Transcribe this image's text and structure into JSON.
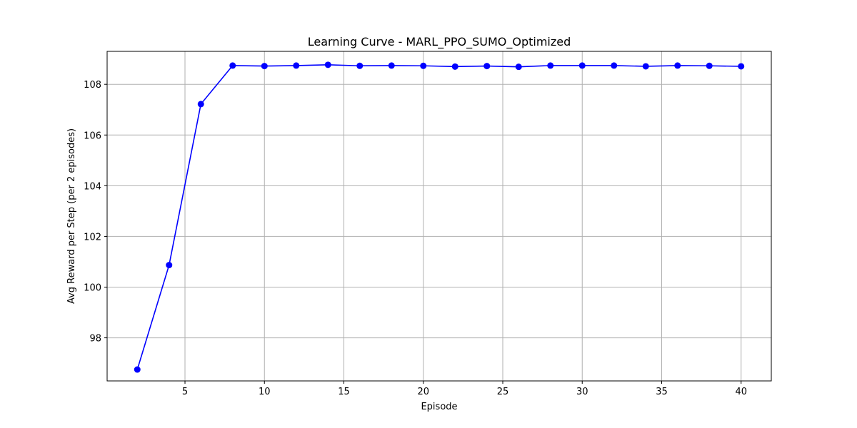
{
  "chart_data": {
    "type": "line",
    "title": "Learning Curve - MARL_PPO_SUMO_Optimized",
    "xlabel": "Episode",
    "ylabel": "Avg Reward per Step (per 2 episodes)",
    "xlim": [
      0.1,
      41.9
    ],
    "ylim": [
      96.3,
      109.3
    ],
    "xticks": [
      5,
      10,
      15,
      20,
      25,
      30,
      35,
      40
    ],
    "yticks": [
      98,
      100,
      102,
      104,
      106,
      108
    ],
    "grid": true,
    "line_color": "#0000ff",
    "marker": "circle",
    "series": [
      {
        "x": [
          2,
          4,
          6,
          8,
          10,
          12,
          14,
          16,
          18,
          20,
          22,
          24,
          26,
          28,
          30,
          32,
          34,
          36,
          38,
          40
        ],
        "values": [
          96.75,
          100.87,
          107.22,
          108.74,
          108.72,
          108.74,
          108.77,
          108.73,
          108.74,
          108.73,
          108.7,
          108.72,
          108.69,
          108.74,
          108.74,
          108.74,
          108.71,
          108.74,
          108.73,
          108.71
        ]
      }
    ]
  }
}
